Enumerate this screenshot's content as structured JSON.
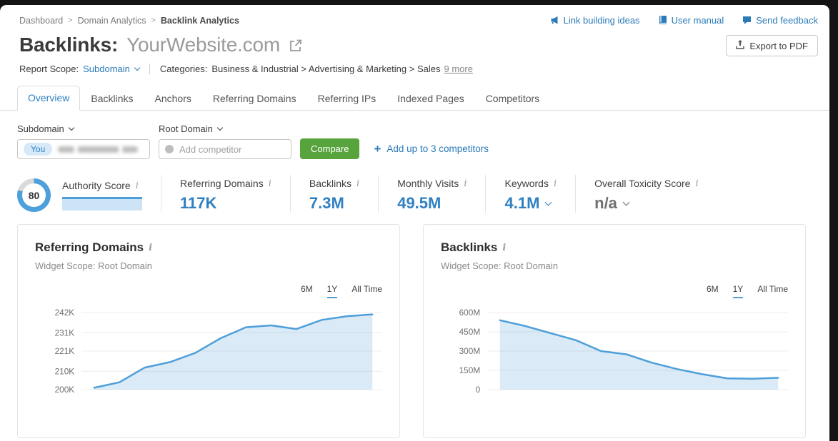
{
  "colors": {
    "link_blue": "#2b7bb9",
    "value_blue": "#2f80c2",
    "chart_line": "#4e9fd9",
    "chart_fill": "rgba(122,180,228,0.28)",
    "grid_line": "#ececec",
    "tick_text": "#6e6e6e",
    "compare_green": "#57a33c",
    "donut_blue": "#4da0dc",
    "donut_track": "#d9d9d9"
  },
  "misc": {
    "info_icon": "i",
    "breadcrumb_separator": ">"
  },
  "breadcrumb": {
    "items": [
      {
        "label": "Dashboard"
      },
      {
        "label": "Domain Analytics"
      },
      {
        "label": "Backlink Analytics"
      }
    ]
  },
  "header_links": [
    {
      "label": "Link building ideas",
      "icon": "megaphone-icon"
    },
    {
      "label": "User manual",
      "icon": "book-icon"
    },
    {
      "label": "Send feedback",
      "icon": "speech-bubble-icon"
    }
  ],
  "title": {
    "prefix": "Backlinks:",
    "domain": "YourWebsite.com"
  },
  "export_button": {
    "label": "Export to PDF"
  },
  "report_scope": {
    "label": "Report Scope:",
    "value": "Subdomain",
    "categories_label": "Categories:",
    "categories_path": "Business & Industrial > Advertising & Marketing > Sales",
    "more_link": "9 more"
  },
  "tabs": [
    {
      "label": "Overview",
      "active": true
    },
    {
      "label": "Backlinks",
      "active": false
    },
    {
      "label": "Anchors",
      "active": false
    },
    {
      "label": "Referring Domains",
      "active": false
    },
    {
      "label": "Referring IPs",
      "active": false
    },
    {
      "label": "Indexed Pages",
      "active": false
    },
    {
      "label": "Competitors",
      "active": false
    }
  ],
  "competitor_bar": {
    "you_scope_label": "Subdomain",
    "competitor_scope_label": "Root Domain",
    "you_badge": "You",
    "you_domain_blurred": true,
    "add_placeholder": "Add competitor",
    "compare_label": "Compare",
    "add_link_plus": "+",
    "add_link_label": "Add up to 3 competitors"
  },
  "metrics": [
    {
      "label": "Authority Score",
      "score": 80
    },
    {
      "label": "Referring Domains",
      "value": "117K"
    },
    {
      "label": "Backlinks",
      "value": "7.3M"
    },
    {
      "label": "Monthly Visits",
      "value": "49.5M"
    },
    {
      "label": "Keywords",
      "value": "4.1M",
      "has_dropdown": true
    },
    {
      "label": "Overall Toxicity Score",
      "value": "n/a",
      "has_dropdown": true,
      "muted": true
    }
  ],
  "chart_data": [
    {
      "type": "area",
      "title": "Referring Domains",
      "subtitle": "Widget Scope: Root Domain",
      "ranges": [
        "6M",
        "1Y",
        "All Time"
      ],
      "active_range": "1Y",
      "unit": "K",
      "ytick_labels": [
        "200K",
        "210K",
        "221K",
        "231K",
        "242K"
      ],
      "ytick_values": [
        200,
        210,
        221,
        231,
        242
      ],
      "ylim": [
        200,
        242
      ],
      "x_points": 12,
      "values": [
        201,
        204,
        212,
        215,
        220,
        228,
        234,
        235,
        233,
        238,
        240,
        241
      ]
    },
    {
      "type": "area",
      "title": "Backlinks",
      "subtitle": "Widget Scope: Root Domain",
      "ranges": [
        "6M",
        "1Y",
        "All Time"
      ],
      "active_range": "1Y",
      "unit": "M",
      "ytick_labels": [
        "0",
        "150M",
        "300M",
        "450M",
        "600M"
      ],
      "ytick_values": [
        0,
        150,
        300,
        450,
        600
      ],
      "ylim": [
        0,
        600
      ],
      "x_points": 12,
      "values": [
        540,
        495,
        440,
        385,
        300,
        275,
        210,
        160,
        120,
        87,
        85,
        92
      ]
    }
  ]
}
